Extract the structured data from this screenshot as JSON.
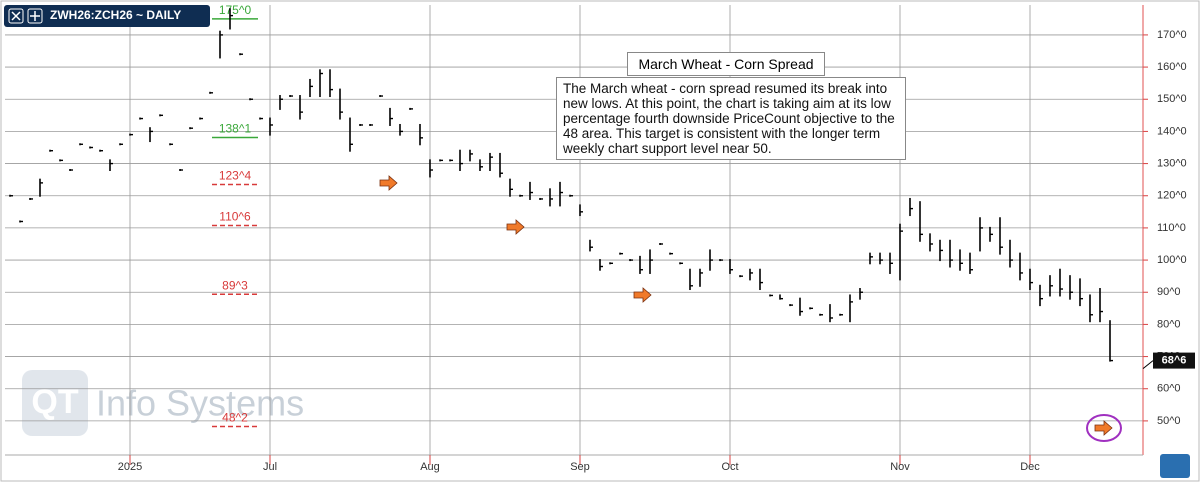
{
  "chart_data": {
    "type": "ohlc",
    "symbol": "ZWH26:ZCH26 ~ DAILY",
    "title": "March Wheat - Corn Spread",
    "annotation": "The March wheat - corn spread resumed its break into new lows.  At this point, the chart is taking aim at its low percentage fourth downside PriceCount objective to the 48 area.  This target is consistent with the longer term weekly chart support level near 50.",
    "watermark": "Info Systems",
    "categories": [
      null,
      null,
      null,
      null,
      null,
      null,
      null,
      null,
      null,
      null,
      null,
      null,
      "2025",
      null,
      null,
      null,
      null,
      null,
      null,
      null,
      null,
      null,
      null,
      null,
      null,
      null,
      "Jul",
      null,
      null,
      null,
      null,
      null,
      null,
      null,
      null,
      null,
      null,
      null,
      null,
      null,
      null,
      null,
      "Aug",
      null,
      null,
      null,
      null,
      null,
      null,
      null,
      null,
      null,
      null,
      null,
      null,
      null,
      null,
      "Sep",
      null,
      null,
      null,
      null,
      null,
      null,
      null,
      null,
      null,
      null,
      null,
      null,
      null,
      null,
      "Oct",
      null,
      null,
      null,
      null,
      null,
      null,
      null,
      null,
      null,
      null,
      null,
      null,
      null,
      null,
      null,
      null,
      "Nov",
      null,
      null,
      null,
      null,
      null,
      null,
      null,
      null,
      null,
      null,
      null,
      null,
      "Dec",
      null,
      null,
      null,
      null,
      null,
      null,
      null,
      null
    ],
    "high": [
      120,
      112,
      119,
      125,
      134,
      131,
      128,
      136,
      135,
      134,
      131,
      136,
      139,
      144,
      141,
      145,
      136,
      128,
      141,
      144,
      152,
      171,
      178,
      164,
      150,
      144,
      144,
      151,
      151,
      151,
      156,
      159,
      159,
      153,
      144,
      142,
      142,
      151,
      147,
      142,
      147,
      142,
      131,
      131,
      131,
      134,
      134,
      131,
      133,
      133,
      125,
      120,
      124,
      119,
      122,
      124,
      120,
      117,
      106,
      100,
      99,
      102,
      100,
      101,
      103,
      105,
      102,
      99,
      97,
      97,
      103,
      100,
      100,
      95,
      97,
      97,
      89,
      89,
      86,
      88,
      85,
      83,
      86,
      83,
      89,
      91,
      102,
      102,
      102,
      111,
      119,
      118,
      108,
      106,
      106,
      103,
      102,
      113,
      110,
      113,
      106,
      102,
      97,
      92,
      95,
      97,
      95,
      94,
      89,
      91,
      81
    ],
    "low": [
      120,
      112,
      119,
      120,
      134,
      131,
      128,
      136,
      135,
      134,
      128,
      136,
      139,
      144,
      137,
      145,
      136,
      128,
      141,
      144,
      152,
      163,
      172,
      164,
      150,
      144,
      139,
      147,
      151,
      144,
      151,
      151,
      151,
      144,
      134,
      142,
      142,
      151,
      142,
      139,
      147,
      136,
      126,
      131,
      131,
      128,
      131,
      128,
      128,
      126,
      120,
      120,
      119,
      119,
      117,
      117,
      120,
      114,
      103,
      97,
      99,
      102,
      100,
      96,
      96,
      105,
      102,
      99,
      91,
      92,
      97,
      100,
      96,
      95,
      94,
      91,
      89,
      88,
      86,
      83,
      85,
      83,
      81,
      83,
      81,
      88,
      99,
      99,
      96,
      94,
      114,
      106,
      103,
      100,
      98,
      97,
      96,
      103,
      106,
      102,
      98,
      94,
      91,
      86,
      89,
      89,
      88,
      86,
      81,
      81,
      68.75
    ],
    "close": [
      120,
      112,
      119,
      124,
      134,
      131,
      128,
      136,
      135,
      134,
      130,
      136,
      139,
      144,
      140,
      145,
      136,
      128,
      141,
      144,
      152,
      170,
      176,
      164,
      150,
      144,
      142,
      150,
      151,
      146,
      154,
      158,
      153,
      146,
      136,
      142,
      142,
      151,
      144,
      140,
      147,
      138,
      128,
      131,
      131,
      130,
      133,
      129,
      132,
      127,
      122,
      120,
      121,
      119,
      119,
      121,
      120,
      115,
      104,
      98,
      99,
      102,
      100,
      97,
      100,
      105,
      102,
      99,
      92,
      96,
      100,
      100,
      97,
      95,
      96,
      93,
      89,
      88,
      86,
      84,
      85,
      83,
      82,
      83,
      87,
      90,
      101,
      100,
      99,
      109,
      116,
      108,
      105,
      103,
      100,
      99,
      97,
      110,
      108,
      104,
      100,
      96,
      93,
      88,
      92,
      91,
      90,
      88,
      83,
      84,
      68.75
    ],
    "color": "#000000",
    "ylim": [
      39.4,
      179.3
    ],
    "yticks": [
      {
        "value": 50,
        "label": "50^0"
      },
      {
        "value": 60,
        "label": "60^0"
      },
      {
        "value": 70,
        "label": "70^0"
      },
      {
        "value": 80,
        "label": "80^0"
      },
      {
        "value": 90,
        "label": "90^0"
      },
      {
        "value": 100,
        "label": "100^0"
      },
      {
        "value": 110,
        "label": "110^0"
      },
      {
        "value": 120,
        "label": "120^0"
      },
      {
        "value": 130,
        "label": "130^0"
      },
      {
        "value": 140,
        "label": "140^0"
      },
      {
        "value": 150,
        "label": "150^0"
      },
      {
        "value": 160,
        "label": "160^0"
      },
      {
        "value": 170,
        "label": "170^0"
      }
    ],
    "grid": true,
    "levels": [
      {
        "value": 175,
        "label": "175^0",
        "color": "#3aa83a"
      },
      {
        "value": 138.125,
        "label": "138^1",
        "color": "#3aa83a"
      },
      {
        "value": 123.5,
        "label": "123^4",
        "color": "#d83a3a"
      },
      {
        "value": 110.75,
        "label": "110^6",
        "color": "#d83a3a"
      },
      {
        "value": 89.375,
        "label": "89^3",
        "color": "#d83a3a"
      },
      {
        "value": 48.25,
        "label": "48^2",
        "color": "#d83a3a"
      }
    ],
    "last": {
      "value": 68.75,
      "label": "68^6"
    }
  }
}
